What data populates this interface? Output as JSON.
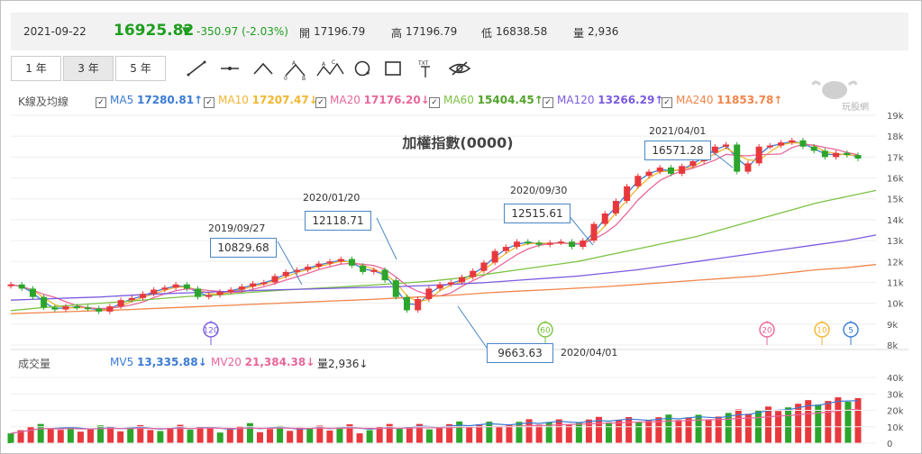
{
  "header": {
    "date": "2021-09-22",
    "price": "16925.82",
    "change": "-350.97 (-2.03%)",
    "open_label": "開",
    "open": "17196.79",
    "high_label": "高",
    "high": "17196.79",
    "low_label": "低",
    "low": "16838.58",
    "vol_label": "量",
    "vol": "2,936"
  },
  "toolbar": {
    "range_1y": "1 年",
    "range_3y": "3 年",
    "range_5y": "5 年"
  },
  "legend": {
    "title": "K線及均線",
    "ma5_label": "MA5",
    "ma5": "17280.81↑",
    "ma10_label": "MA10",
    "ma10": "17207.47↓",
    "ma20_label": "MA20",
    "ma20": "17176.20↓",
    "ma60_label": "MA60",
    "ma60": "15404.45↑",
    "ma120_label": "MA120",
    "ma120": "13266.29↑",
    "ma240_label": "MA240",
    "ma240": "11853.78↑"
  },
  "volume_legend": {
    "title": "成交量",
    "mv5_label": "MV5",
    "mv5": "13,335.88↓",
    "mv20_label": "MV20",
    "mv20": "21,384.38↓",
    "vol_label": "量2,936↓"
  },
  "watermark": "玩股網",
  "colors": {
    "up": "#e8383d",
    "down": "#2ba52b",
    "ma5": "#3a7bd5",
    "ma10": "#f2b632",
    "ma20": "#e9669b",
    "ma60": "#7cc242",
    "ma120": "#7b5be0",
    "ma240": "#f2854a"
  },
  "chart_data": {
    "type": "candlestick",
    "title": "加權指數(0000)",
    "x_range": [
      "2018-09",
      "2021-09-22"
    ],
    "ylim": [
      8000,
      19000
    ],
    "y_ticks": [
      "19k",
      "18k",
      "17k",
      "16k",
      "15k",
      "14k",
      "13k",
      "12k",
      "11k",
      "10k",
      "9k",
      "8k"
    ],
    "volume_ylim": [
      0,
      40000
    ],
    "volume_ticks": [
      "40k",
      "30k",
      "20k",
      "10k",
      "0"
    ],
    "close_series": [
      10900,
      10700,
      10300,
      9800,
      9700,
      9850,
      9800,
      9750,
      9600,
      9850,
      10150,
      10250,
      10450,
      10650,
      10750,
      10900,
      10700,
      10300,
      10400,
      10550,
      10650,
      10800,
      10950,
      11000,
      11300,
      11500,
      11600,
      11750,
      11900,
      12000,
      12118,
      11800,
      11500,
      11600,
      11100,
      10300,
      9663,
      10200,
      10700,
      10900,
      11000,
      11250,
      11550,
      11950,
      12500,
      12700,
      12950,
      12900,
      12800,
      12900,
      12950,
      12700,
      13000,
      13800,
      14300,
      14900,
      15600,
      16100,
      16300,
      16500,
      16200,
      16571,
      16800,
      17200,
      17500,
      17600,
      16300,
      16700,
      17500,
      17550,
      17700,
      17800,
      17500,
      17300,
      17000,
      17200,
      17100,
      16926
    ],
    "ma60_series": [
      9650,
      9780,
      9900,
      10000,
      10100,
      10220,
      10330,
      10400,
      10520,
      10620,
      10700,
      10780,
      10860,
      10950,
      11050,
      11200,
      11400,
      11600,
      11800,
      12000,
      12300,
      12600,
      12900,
      13200,
      13600,
      14000,
      14400,
      14800,
      15100,
      15404
    ],
    "ma120_series": [
      10150,
      10200,
      10250,
      10300,
      10380,
      10450,
      10500,
      10550,
      10600,
      10650,
      10680,
      10720,
      10760,
      10800,
      10850,
      10920,
      11000,
      11100,
      11200,
      11300,
      11450,
      11600,
      11800,
      12000,
      12200,
      12400,
      12600,
      12800,
      13000,
      13266
    ],
    "ma240_series": [
      9500,
      9550,
      9600,
      9650,
      9700,
      9760,
      9820,
      9880,
      9940,
      10000,
      10060,
      10120,
      10180,
      10250,
      10320,
      10400,
      10500,
      10580,
      10650,
      10720,
      10800,
      10900,
      11000,
      11100,
      11200,
      11300,
      11450,
      11600,
      11700,
      11854
    ],
    "ma_cross_markers": [
      {
        "label": "120",
        "date": "2019-04"
      },
      {
        "label": "60",
        "date": "2020-06"
      },
      {
        "label": "20",
        "date": "2021-07"
      },
      {
        "label": "10",
        "date": "2021-08"
      },
      {
        "label": "5",
        "date": "2021-09"
      }
    ],
    "annotations": [
      {
        "date": "2019/09/27",
        "value": "10829.68"
      },
      {
        "date": "2020/01/20",
        "value": "12118.71"
      },
      {
        "date": "2020/09/30",
        "value": "12515.61"
      },
      {
        "date": "2021/04/01",
        "value": "16571.28"
      },
      {
        "date": "2020/04/01",
        "value": "9663.63"
      }
    ]
  }
}
